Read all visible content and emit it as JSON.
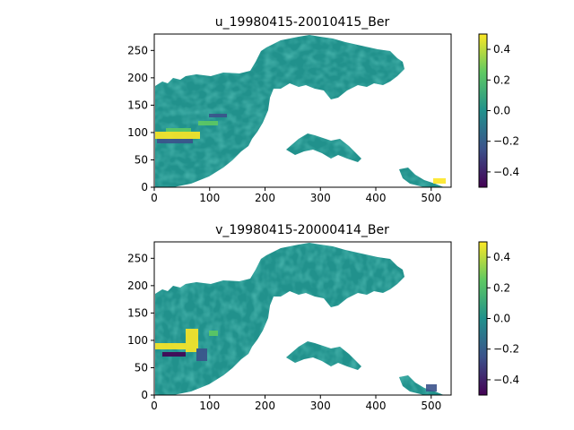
{
  "chart_data": [
    {
      "type": "heatmap",
      "title": "u_19980415-20010415_Ber",
      "xlabel": "",
      "ylabel": "",
      "xlim": [
        0,
        536
      ],
      "ylim": [
        0,
        280
      ],
      "xticks": [
        0,
        100,
        200,
        300,
        400,
        500
      ],
      "yticks": [
        0,
        50,
        100,
        150,
        200,
        250
      ],
      "colorbar": {
        "range": [
          -0.5,
          0.5
        ],
        "ticks": [
          0.4,
          0.2,
          0.0,
          -0.2,
          -0.4
        ],
        "tick_labels": [
          "0.4",
          "0.2",
          "0.0",
          "−0.2",
          "−0.4"
        ]
      },
      "colormap": [
        "#440154",
        "#3b528b",
        "#21918c",
        "#5ec962",
        "#fde725"
      ],
      "background": "#ffffff"
    },
    {
      "type": "heatmap",
      "title": "v_19980415-20000414_Ber",
      "xlabel": "",
      "ylabel": "",
      "xlim": [
        0,
        536
      ],
      "ylim": [
        0,
        280
      ],
      "xticks": [
        0,
        100,
        200,
        300,
        400,
        500
      ],
      "yticks": [
        0,
        50,
        100,
        150,
        200,
        250
      ],
      "colorbar": {
        "range": [
          -0.5,
          0.5
        ],
        "ticks": [
          0.4,
          0.2,
          0.0,
          -0.2,
          -0.4
        ],
        "tick_labels": [
          "0.4",
          "0.2",
          "0.0",
          "−0.2",
          "−0.4"
        ]
      },
      "colormap": [
        "#440154",
        "#3b528b",
        "#21918c",
        "#5ec962",
        "#fde725"
      ],
      "background": "#ffffff"
    }
  ]
}
